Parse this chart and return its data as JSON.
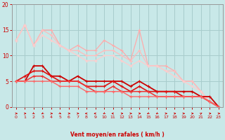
{
  "bg_color": "#c8e8e8",
  "grid_color": "#a8cccc",
  "xlabel": "Vent moyen/en rafales ( km/h )",
  "xlabel_color": "#cc0000",
  "ylim": [
    0,
    20
  ],
  "xlim": [
    -0.5,
    23.5
  ],
  "yticks": [
    0,
    5,
    10,
    15,
    20
  ],
  "xticks": [
    0,
    1,
    2,
    3,
    4,
    5,
    6,
    7,
    8,
    9,
    10,
    11,
    12,
    13,
    14,
    15,
    16,
    17,
    18,
    19,
    20,
    21,
    22,
    23
  ],
  "lines": [
    {
      "x": [
        0,
        1,
        2,
        3,
        4,
        5,
        6,
        7,
        8,
        9,
        10,
        11,
        12,
        13,
        14,
        15,
        16,
        17,
        18,
        19,
        20,
        21,
        22,
        23
      ],
      "y": [
        13,
        16,
        12,
        15,
        15,
        12,
        11,
        12,
        11,
        11,
        13,
        12,
        11,
        9,
        15,
        8,
        8,
        8,
        7,
        5,
        5,
        3,
        1,
        0
      ],
      "color": "#ffaaaa",
      "lw": 0.9
    },
    {
      "x": [
        0,
        1,
        2,
        3,
        4,
        5,
        6,
        7,
        8,
        9,
        10,
        11,
        12,
        13,
        14,
        15,
        16,
        17,
        18,
        19,
        20,
        21,
        22,
        23
      ],
      "y": [
        13,
        16,
        12,
        15,
        14,
        12,
        11,
        11,
        10,
        10,
        11,
        11,
        10,
        9,
        11,
        8,
        8,
        7,
        7,
        5,
        5,
        3,
        1,
        0
      ],
      "color": "#ffbbbb",
      "lw": 0.9
    },
    {
      "x": [
        0,
        1,
        2,
        3,
        4,
        5,
        6,
        7,
        8,
        9,
        10,
        11,
        12,
        13,
        14,
        15,
        16,
        17,
        18,
        19,
        20,
        21,
        22,
        23
      ],
      "y": [
        13,
        16,
        12,
        14,
        13,
        12,
        11,
        10,
        9,
        9,
        10,
        10,
        9,
        8,
        9,
        8,
        8,
        7,
        6,
        5,
        4,
        3,
        1,
        0
      ],
      "color": "#ffcccc",
      "lw": 0.9
    },
    {
      "x": [
        0,
        1,
        2,
        3,
        4,
        5,
        6,
        7,
        8,
        9,
        10,
        11,
        12,
        13,
        14,
        15,
        16,
        17,
        18,
        19,
        20,
        21,
        22,
        23
      ],
      "y": [
        5,
        5,
        8,
        8,
        6,
        6,
        5,
        6,
        5,
        5,
        5,
        5,
        5,
        4,
        5,
        4,
        3,
        3,
        3,
        3,
        3,
        2,
        2,
        0
      ],
      "color": "#cc0000",
      "lw": 1.3
    },
    {
      "x": [
        0,
        1,
        2,
        3,
        4,
        5,
        6,
        7,
        8,
        9,
        10,
        11,
        12,
        13,
        14,
        15,
        16,
        17,
        18,
        19,
        20,
        21,
        22,
        23
      ],
      "y": [
        5,
        6,
        7,
        7,
        6,
        5,
        5,
        5,
        4,
        4,
        4,
        5,
        4,
        3,
        4,
        3,
        3,
        3,
        3,
        2,
        2,
        2,
        1,
        0
      ],
      "color": "#dd1111",
      "lw": 1.2
    },
    {
      "x": [
        0,
        1,
        2,
        3,
        4,
        5,
        6,
        7,
        8,
        9,
        10,
        11,
        12,
        13,
        14,
        15,
        16,
        17,
        18,
        19,
        20,
        21,
        22,
        23
      ],
      "y": [
        5,
        5,
        6,
        6,
        5,
        5,
        5,
        5,
        4,
        3,
        3,
        4,
        3,
        3,
        3,
        3,
        2,
        2,
        2,
        2,
        2,
        2,
        1,
        0
      ],
      "color": "#ee3333",
      "lw": 1.1
    },
    {
      "x": [
        0,
        1,
        2,
        3,
        4,
        5,
        6,
        7,
        8,
        9,
        10,
        11,
        12,
        13,
        14,
        15,
        16,
        17,
        18,
        19,
        20,
        21,
        22,
        23
      ],
      "y": [
        5,
        5,
        5,
        5,
        5,
        4,
        4,
        4,
        3,
        3,
        3,
        3,
        3,
        2,
        2,
        2,
        2,
        2,
        2,
        2,
        2,
        2,
        1,
        0
      ],
      "color": "#ff6666",
      "lw": 1.0
    }
  ],
  "arrow_angles": [
    90,
    90,
    135,
    225,
    90,
    135,
    90,
    90,
    270,
    270,
    225,
    270,
    90,
    90,
    90,
    225,
    225,
    90,
    90,
    90,
    90,
    45,
    90,
    90
  ]
}
